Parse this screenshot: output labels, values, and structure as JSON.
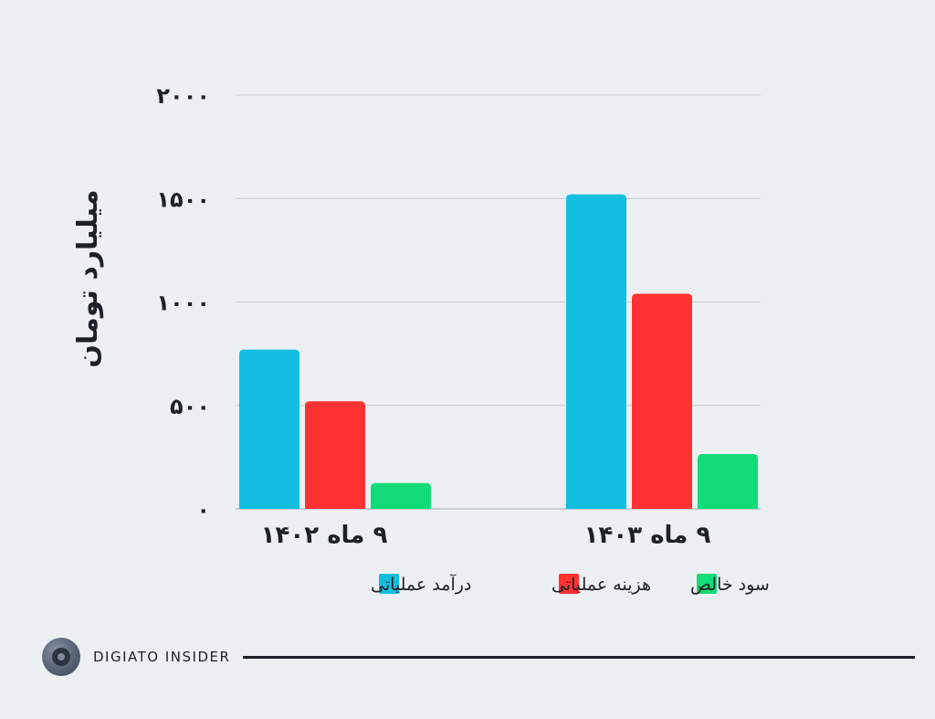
{
  "chart_data": {
    "type": "bar",
    "categories": [
      "۹ ماه ۱۴۰۲",
      "۹ ماه ۱۴۰۳"
    ],
    "series": [
      {
        "name": "درآمد عملیاتی",
        "values": [
          770,
          1520
        ],
        "color": "#12bfe0"
      },
      {
        "name": "هزینه عملیاتی",
        "values": [
          520,
          1040
        ],
        "color": "#ff3232"
      },
      {
        "name": "سود خالص",
        "values": [
          125,
          265
        ],
        "color": "#12dc78"
      }
    ],
    "ylabel": "میلیارد تومان",
    "yticks": [
      0,
      500,
      1000,
      1500,
      2000
    ],
    "ytick_labels": [
      "۰",
      "۵۰۰",
      "۱۰۰۰",
      "۱۵۰۰",
      "۲۰۰۰"
    ],
    "ylim": [
      0,
      2000
    ],
    "grid": true,
    "legend_position": "bottom"
  },
  "footer": {
    "brand": "DIGIATO INSIDER",
    "logo_icon": "digiato-logo-icon"
  }
}
